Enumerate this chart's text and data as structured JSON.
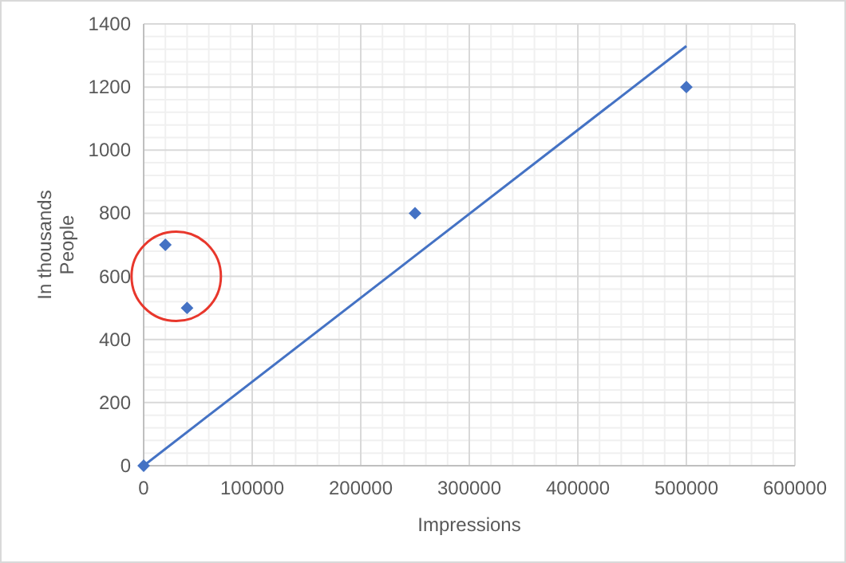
{
  "chart_data": {
    "type": "scatter",
    "xlabel": "Impressions",
    "ylabel": "In thousands\nPeople",
    "x": [
      0,
      20000,
      40000,
      250000,
      500000
    ],
    "series": [
      {
        "color": "#4472c4",
        "values": [
          0,
          700,
          500,
          800,
          1200
        ],
        "marker": "diamond"
      },
      {
        "type": "line",
        "color": "#4472c4",
        "x": [
          0,
          500000
        ],
        "values": [
          0,
          1330
        ],
        "marker": "none",
        "line_style": "solid"
      }
    ],
    "xlim": [
      0,
      600000
    ],
    "xticks": [
      0,
      100000,
      200000,
      300000,
      400000,
      500000,
      600000
    ],
    "ylim": [
      0,
      1400
    ],
    "yticks": [
      0,
      200,
      400,
      600,
      800,
      1000,
      1200,
      1400
    ],
    "grid": true
  }
}
